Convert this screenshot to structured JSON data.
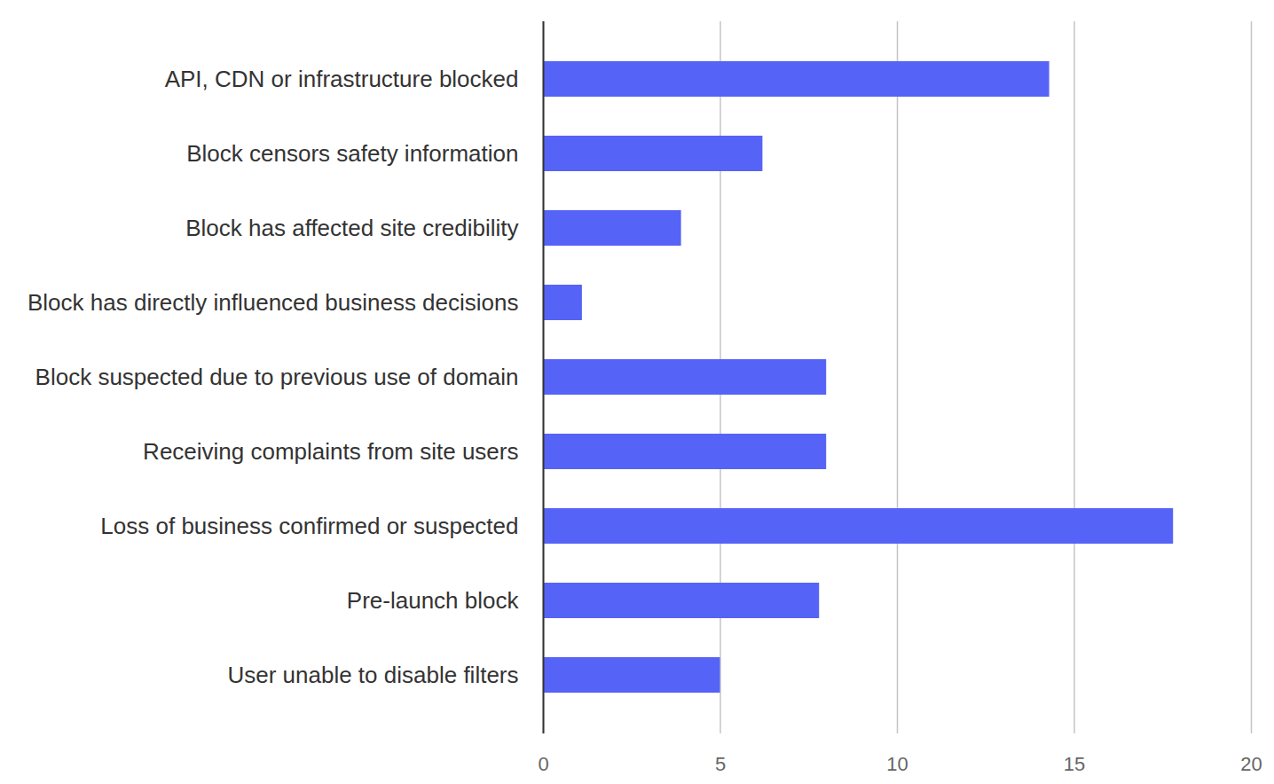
{
  "chart_data": {
    "type": "bar",
    "orientation": "horizontal",
    "categories": [
      "API, CDN or infrastructure blocked",
      "Block censors safety information",
      "Block has affected site credibility",
      "Block has directly influenced business decisions",
      "Block suspected due to previous use of domain",
      "Receiving complaints from site users",
      "Loss of business confirmed or suspected",
      "Pre-launch block",
      "User unable to disable filters"
    ],
    "values": [
      14.3,
      6.2,
      3.9,
      1.1,
      8.0,
      8.0,
      17.8,
      7.8,
      5.0
    ],
    "color": "#5663f7",
    "xlim": [
      0,
      20
    ],
    "xticks": [
      0,
      5,
      10,
      15,
      20
    ],
    "grid": true
  }
}
